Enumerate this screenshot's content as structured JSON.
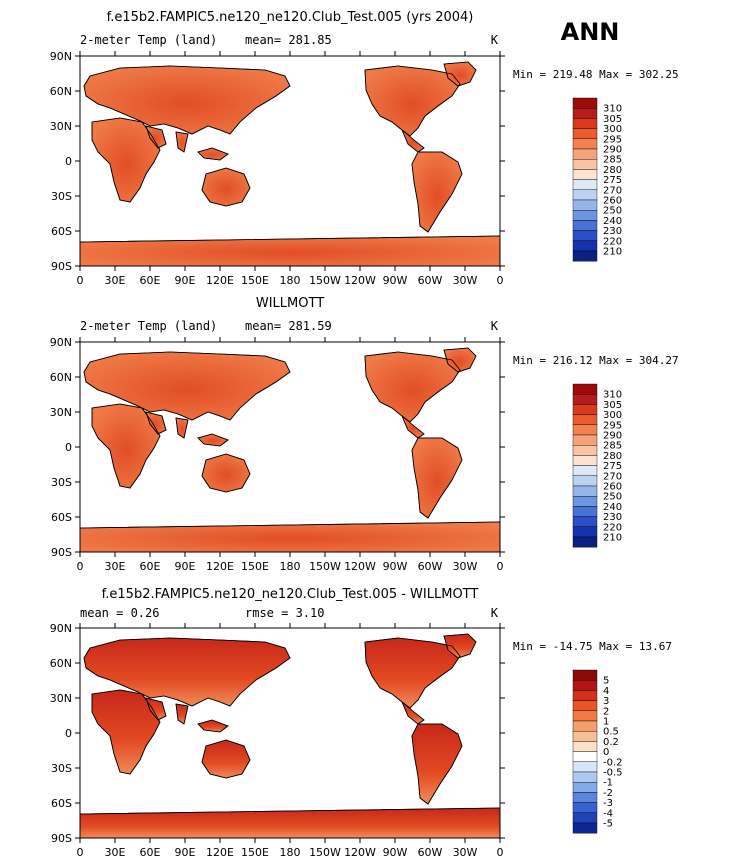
{
  "figure": {
    "season_label": "ANN"
  },
  "chart_data": [
    {
      "type": "heatmap",
      "title": "f.e15b2.FAMPIC5.ne120_ne120.Club_Test.005 (yrs 2004)",
      "left_label": "2-meter Temp (land)",
      "stats": "mean= 281.85",
      "units": "K",
      "minmax": "Min = 219.48 Max = 302.25",
      "x_ticks": [
        "0",
        "30E",
        "60E",
        "90E",
        "120E",
        "150E",
        "180",
        "150W",
        "120W",
        "90W",
        "60W",
        "30W",
        "0"
      ],
      "y_ticks": [
        "90N",
        "60N",
        "30N",
        "0",
        "30S",
        "60S",
        "90S"
      ],
      "xlim": [
        0,
        360
      ],
      "ylim": [
        -90,
        90
      ],
      "levels": [
        "310",
        "305",
        "300",
        "295",
        "290",
        "285",
        "280",
        "275",
        "270",
        "260",
        "250",
        "240",
        "230",
        "220",
        "210"
      ],
      "colors": [
        "#9e0b0b",
        "#b71c1c",
        "#d93a1e",
        "#ec5a30",
        "#f2824f",
        "#f6a27a",
        "#fac4a4",
        "#fce2d0",
        "#dde9f7",
        "#bcd2f1",
        "#95b6ea",
        "#6d96e0",
        "#4872d6",
        "#2a4fc9",
        "#1533ad",
        "#0c1f82"
      ]
    },
    {
      "type": "heatmap",
      "title": "WILLMOTT",
      "left_label": "2-meter Temp (land)",
      "stats": "mean= 281.59",
      "units": "K",
      "minmax": "Min = 216.12 Max = 304.27",
      "x_ticks": [
        "0",
        "30E",
        "60E",
        "90E",
        "120E",
        "150E",
        "180",
        "150W",
        "120W",
        "90W",
        "60W",
        "30W",
        "0"
      ],
      "y_ticks": [
        "90N",
        "60N",
        "30N",
        "0",
        "30S",
        "60S",
        "90S"
      ],
      "xlim": [
        0,
        360
      ],
      "ylim": [
        -90,
        90
      ],
      "levels": [
        "310",
        "305",
        "300",
        "295",
        "290",
        "285",
        "280",
        "275",
        "270",
        "260",
        "250",
        "240",
        "230",
        "220",
        "210"
      ],
      "colors": [
        "#9e0b0b",
        "#b71c1c",
        "#d93a1e",
        "#ec5a30",
        "#f2824f",
        "#f6a27a",
        "#fac4a4",
        "#fce2d0",
        "#dde9f7",
        "#bcd2f1",
        "#95b6ea",
        "#6d96e0",
        "#4872d6",
        "#2a4fc9",
        "#1533ad",
        "#0c1f82"
      ]
    },
    {
      "type": "heatmap",
      "title": "f.e15b2.FAMPIC5.ne120_ne120.Club_Test.005 - WILLMOTT",
      "left_label": "mean =    0.26",
      "stats": "rmse =    3.10",
      "units": "K",
      "minmax": "Min = -14.75 Max =  13.67",
      "x_ticks": [
        "0",
        "30E",
        "60E",
        "90E",
        "120E",
        "150E",
        "180",
        "150W",
        "120W",
        "90W",
        "60W",
        "30W",
        "0"
      ],
      "y_ticks": [
        "90N",
        "60N",
        "30N",
        "0",
        "30S",
        "60S",
        "90S"
      ],
      "xlim": [
        0,
        360
      ],
      "ylim": [
        -90,
        90
      ],
      "levels": [
        "5",
        "4",
        "3",
        "2",
        "1",
        "0.5",
        "0.2",
        "0",
        "-0.2",
        "-0.5",
        "-1",
        "-2",
        "-3",
        "-4",
        "-5"
      ],
      "colors": [
        "#8b0a0a",
        "#b31414",
        "#d32f1b",
        "#ea5426",
        "#f27a44",
        "#f69e6b",
        "#f9bf97",
        "#fde0c8",
        "#ffffff",
        "#d7e5f8",
        "#aecaf1",
        "#84aae8",
        "#5a87dd",
        "#3663cf",
        "#1e44b7",
        "#0e2790"
      ]
    }
  ]
}
